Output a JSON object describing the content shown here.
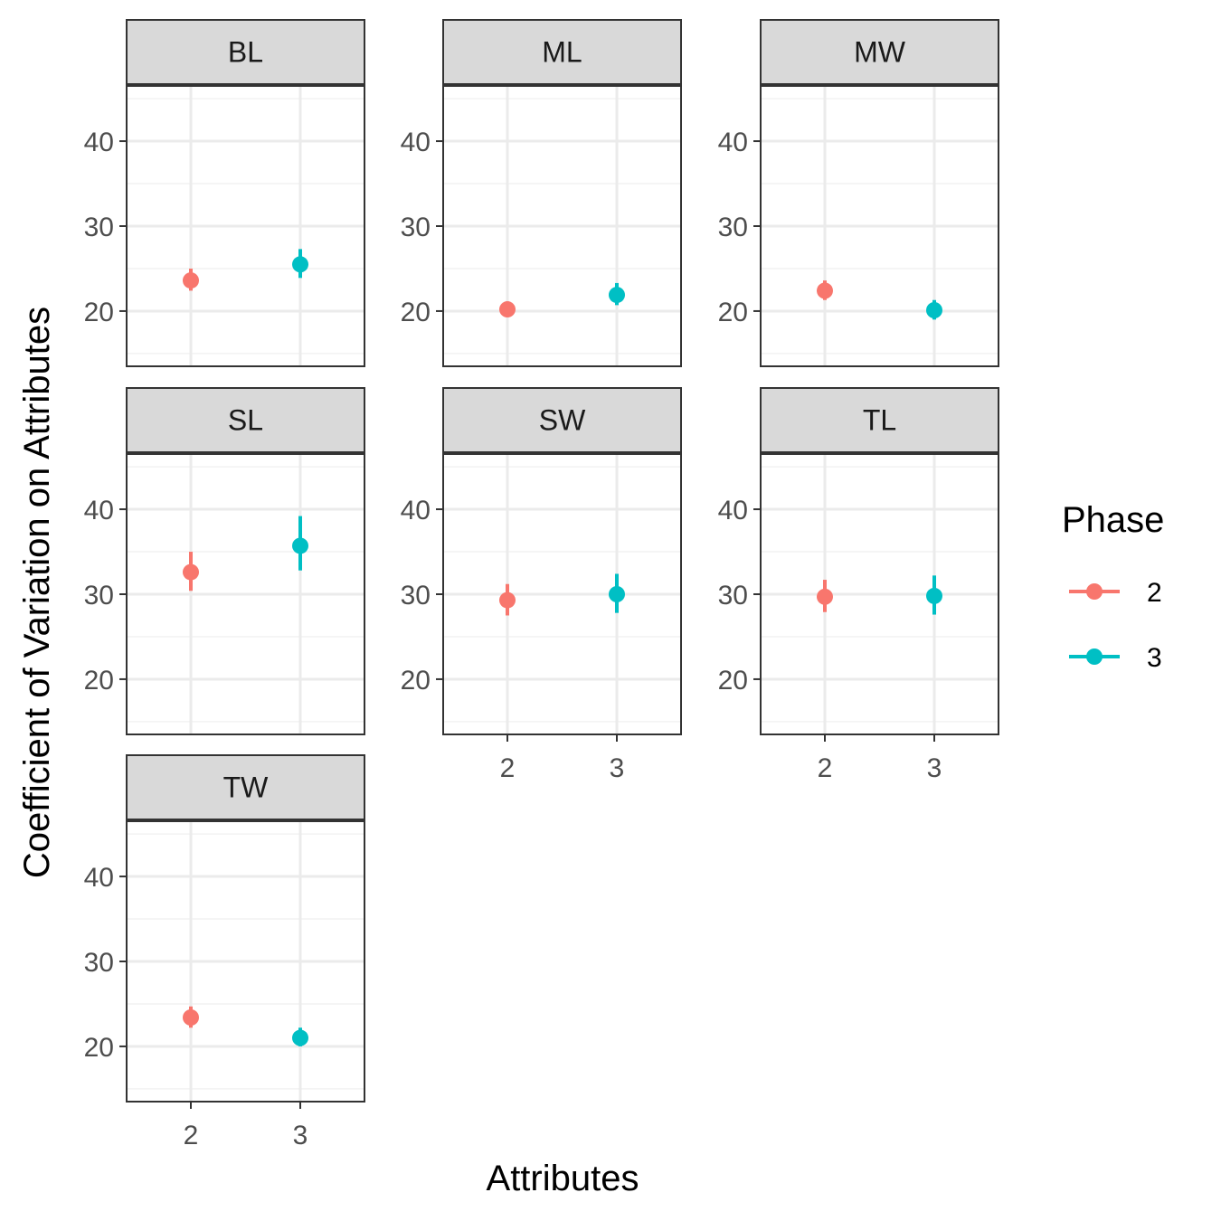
{
  "chart_data": {
    "type": "scatter",
    "subtype": "pointrange",
    "facet_wrap": true,
    "facets": [
      {
        "label": "BL",
        "points": [
          {
            "x": "2",
            "mean": 23.6,
            "lo": 22.4,
            "hi": 25.0
          },
          {
            "x": "3",
            "mean": 25.5,
            "lo": 23.9,
            "hi": 27.3
          }
        ]
      },
      {
        "label": "ML",
        "points": [
          {
            "x": "2",
            "mean": 20.2,
            "lo": 19.5,
            "hi": 21.0
          },
          {
            "x": "3",
            "mean": 21.9,
            "lo": 20.7,
            "hi": 23.3
          }
        ]
      },
      {
        "label": "MW",
        "points": [
          {
            "x": "2",
            "mean": 22.4,
            "lo": 21.3,
            "hi": 23.6
          },
          {
            "x": "3",
            "mean": 20.1,
            "lo": 19.0,
            "hi": 21.3
          }
        ]
      },
      {
        "label": "SL",
        "points": [
          {
            "x": "2",
            "mean": 32.6,
            "lo": 30.4,
            "hi": 35.0
          },
          {
            "x": "3",
            "mean": 35.7,
            "lo": 32.8,
            "hi": 39.2
          }
        ]
      },
      {
        "label": "SW",
        "points": [
          {
            "x": "2",
            "mean": 29.3,
            "lo": 27.5,
            "hi": 31.2
          },
          {
            "x": "3",
            "mean": 30.0,
            "lo": 27.8,
            "hi": 32.4
          }
        ]
      },
      {
        "label": "TL",
        "points": [
          {
            "x": "2",
            "mean": 29.7,
            "lo": 27.9,
            "hi": 31.7
          },
          {
            "x": "3",
            "mean": 29.8,
            "lo": 27.6,
            "hi": 32.2
          }
        ]
      },
      {
        "label": "TW",
        "points": [
          {
            "x": "2",
            "mean": 23.4,
            "lo": 22.2,
            "hi": 24.7
          },
          {
            "x": "3",
            "mean": 21.0,
            "lo": 20.0,
            "hi": 22.2
          }
        ]
      }
    ],
    "categories": [
      "2",
      "3"
    ],
    "series": [
      {
        "name": "2",
        "color": "#F8766D"
      },
      {
        "name": "3",
        "color": "#00BFC4"
      }
    ],
    "ylim": [
      13.5,
      46.5
    ],
    "yticks": [
      20,
      30,
      40
    ],
    "xlabel": "Attributes",
    "ylabel": "Coefficient of Variation on Attributes",
    "legend": {
      "title": "Phase",
      "position": "right"
    },
    "grid": true,
    "theme_colors": {
      "strip_fill": "#D9D9D9",
      "panel_border": "#333333",
      "grid_major": "#EBEBEB",
      "grid_minor": "#F2F2F2",
      "tick_text": "#4D4D4D"
    }
  }
}
